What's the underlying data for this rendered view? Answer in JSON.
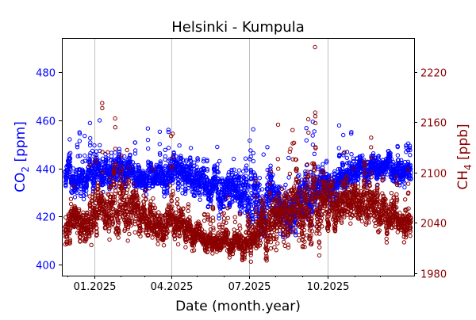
{
  "chart_data": {
    "type": "scatter",
    "title": "Helsinki - Kumpula",
    "xlabel": "Date (month.year)",
    "ylabel_left": "CO2 [ppm]",
    "ylabel_right": "CH4 [ppb]",
    "xlim": [
      "2024-11-28",
      "2026-01-06"
    ],
    "ylim_left": [
      395.4,
      494.2
    ],
    "ylim_right": [
      1977,
      2260.6
    ],
    "x_ticks": [
      {
        "date": "2025-01-01",
        "label": "01.2025"
      },
      {
        "date": "2025-04-01",
        "label": "04.2025"
      },
      {
        "date": "2025-07-01",
        "label": "07.2025"
      },
      {
        "date": "2025-10-01",
        "label": "10.2025"
      }
    ],
    "x_minor_ticks": [
      "2024-12-01",
      "2025-02-01",
      "2025-03-01",
      "2025-05-01",
      "2025-06-01",
      "2025-08-01",
      "2025-09-01",
      "2025-11-01",
      "2025-12-01"
    ],
    "y_ticks_left": [
      {
        "value": 400,
        "label": "400"
      },
      {
        "value": 420,
        "label": "420"
      },
      {
        "value": 440,
        "label": "440"
      },
      {
        "value": 460,
        "label": "460"
      },
      {
        "value": 480,
        "label": "480"
      }
    ],
    "y_ticks_right": [
      {
        "value": 1980,
        "label": "1980"
      },
      {
        "value": 2040,
        "label": "2040"
      },
      {
        "value": 2100,
        "label": "2100"
      },
      {
        "value": 2160,
        "label": "2160"
      },
      {
        "value": 2220,
        "label": "2220"
      }
    ],
    "grid": "x-major",
    "colors": {
      "co2": "#0000ff",
      "ch4": "#8b0000"
    },
    "series": [
      {
        "name": "CO2",
        "axis": "left",
        "marker": "open-circle",
        "note": "approximate semi-monthly mean and spread of the plotted points",
        "anchors": [
          {
            "date": "2024-11-28",
            "mean": 438,
            "spread": 5
          },
          {
            "date": "2024-12-15",
            "mean": 437,
            "spread": 5
          },
          {
            "date": "2025-01-01",
            "mean": 437,
            "spread": 5
          },
          {
            "date": "2025-01-15",
            "mean": 436,
            "spread": 5
          },
          {
            "date": "2025-02-01",
            "mean": 440,
            "spread": 6
          },
          {
            "date": "2025-02-15",
            "mean": 437,
            "spread": 5
          },
          {
            "date": "2025-03-01",
            "mean": 436,
            "spread": 4
          },
          {
            "date": "2025-03-15",
            "mean": 436,
            "spread": 4
          },
          {
            "date": "2025-04-01",
            "mean": 438,
            "spread": 5
          },
          {
            "date": "2025-04-15",
            "mean": 437,
            "spread": 5
          },
          {
            "date": "2025-05-01",
            "mean": 434,
            "spread": 5
          },
          {
            "date": "2025-05-15",
            "mean": 432,
            "spread": 5
          },
          {
            "date": "2025-06-01",
            "mean": 431,
            "spread": 6
          },
          {
            "date": "2025-06-15",
            "mean": 430,
            "spread": 7
          },
          {
            "date": "2025-07-01",
            "mean": 427,
            "spread": 8
          },
          {
            "date": "2025-07-15",
            "mean": 425,
            "spread": 9
          },
          {
            "date": "2025-08-01",
            "mean": 426,
            "spread": 8
          },
          {
            "date": "2025-08-15",
            "mean": 425,
            "spread": 8
          },
          {
            "date": "2025-09-01",
            "mean": 428,
            "spread": 8
          },
          {
            "date": "2025-09-15",
            "mean": 430,
            "spread": 8
          },
          {
            "date": "2025-10-01",
            "mean": 433,
            "spread": 6
          },
          {
            "date": "2025-10-15",
            "mean": 435,
            "spread": 5
          },
          {
            "date": "2025-11-01",
            "mean": 438,
            "spread": 5
          },
          {
            "date": "2025-11-15",
            "mean": 440,
            "spread": 5
          },
          {
            "date": "2025-12-01",
            "mean": 440,
            "spread": 5
          },
          {
            "date": "2025-12-15",
            "mean": 440,
            "spread": 4
          },
          {
            "date": "2026-01-06",
            "mean": 439,
            "spread": 4
          }
        ]
      },
      {
        "name": "CH4",
        "axis": "right",
        "marker": "open-circle",
        "note": "approximate semi-monthly mean and spread of the plotted points",
        "anchors": [
          {
            "date": "2024-11-28",
            "mean": 2045,
            "spread": 20
          },
          {
            "date": "2024-12-15",
            "mean": 2035,
            "spread": 15
          },
          {
            "date": "2025-01-01",
            "mean": 2045,
            "spread": 20
          },
          {
            "date": "2025-01-15",
            "mean": 2055,
            "spread": 25
          },
          {
            "date": "2025-02-01",
            "mean": 2065,
            "spread": 28
          },
          {
            "date": "2025-02-15",
            "mean": 2050,
            "spread": 22
          },
          {
            "date": "2025-03-01",
            "mean": 2040,
            "spread": 15
          },
          {
            "date": "2025-03-15",
            "mean": 2035,
            "spread": 14
          },
          {
            "date": "2025-04-01",
            "mean": 2040,
            "spread": 18
          },
          {
            "date": "2025-04-15",
            "mean": 2035,
            "spread": 15
          },
          {
            "date": "2025-05-01",
            "mean": 2025,
            "spread": 12
          },
          {
            "date": "2025-05-15",
            "mean": 2020,
            "spread": 10
          },
          {
            "date": "2025-06-01",
            "mean": 2015,
            "spread": 10
          },
          {
            "date": "2025-06-15",
            "mean": 2012,
            "spread": 10
          },
          {
            "date": "2025-07-01",
            "mean": 2015,
            "spread": 14
          },
          {
            "date": "2025-07-15",
            "mean": 2030,
            "spread": 20
          },
          {
            "date": "2025-08-01",
            "mean": 2040,
            "spread": 25
          },
          {
            "date": "2025-08-15",
            "mean": 2045,
            "spread": 28
          },
          {
            "date": "2025-09-01",
            "mean": 2055,
            "spread": 35
          },
          {
            "date": "2025-09-15",
            "mean": 2070,
            "spread": 40
          },
          {
            "date": "2025-10-01",
            "mean": 2065,
            "spread": 22
          },
          {
            "date": "2025-10-15",
            "mean": 2060,
            "spread": 20
          },
          {
            "date": "2025-11-01",
            "mean": 2065,
            "spread": 20
          },
          {
            "date": "2025-11-15",
            "mean": 2070,
            "spread": 22
          },
          {
            "date": "2025-12-01",
            "mean": 2060,
            "spread": 20
          },
          {
            "date": "2025-12-15",
            "mean": 2045,
            "spread": 15
          },
          {
            "date": "2026-01-06",
            "mean": 2040,
            "spread": 12
          }
        ]
      }
    ]
  }
}
